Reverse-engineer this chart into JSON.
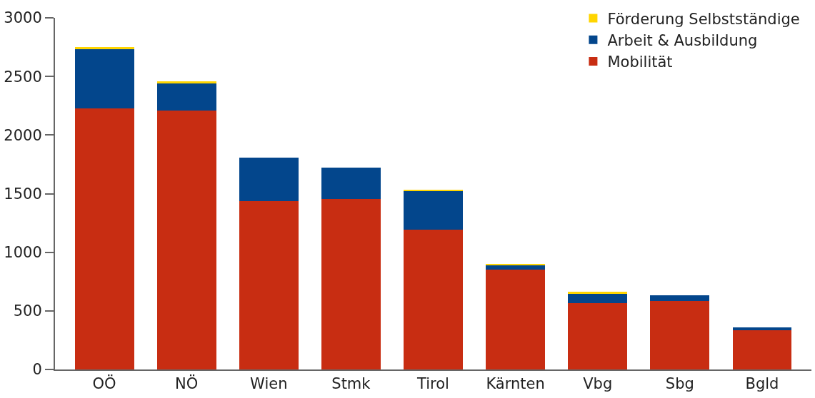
{
  "chart_data": {
    "type": "bar",
    "stacked": true,
    "categories": [
      "OÖ",
      "NÖ",
      "Wien",
      "Stmk",
      "Tirol",
      "Kärnten",
      "Vbg",
      "Sbg",
      "Bgld"
    ],
    "series": [
      {
        "name": "Mobilität",
        "color": "#c82d12",
        "values": [
          2230,
          2210,
          1435,
          1455,
          1190,
          855,
          565,
          585,
          335
        ]
      },
      {
        "name": "Arbeit & Ausbildung",
        "color": "#03468c",
        "values": [
          505,
          230,
          370,
          270,
          335,
          35,
          85,
          50,
          25
        ]
      },
      {
        "name": "Förderung Selbstständige",
        "color": "#ffd500",
        "values": [
          15,
          20,
          0,
          0,
          5,
          12,
          12,
          0,
          0
        ]
      }
    ],
    "ylim": [
      0,
      3000
    ],
    "yticks": [
      0,
      500,
      1000,
      1500,
      2000,
      2500,
      3000
    ],
    "grid": false,
    "legend": "top right"
  }
}
